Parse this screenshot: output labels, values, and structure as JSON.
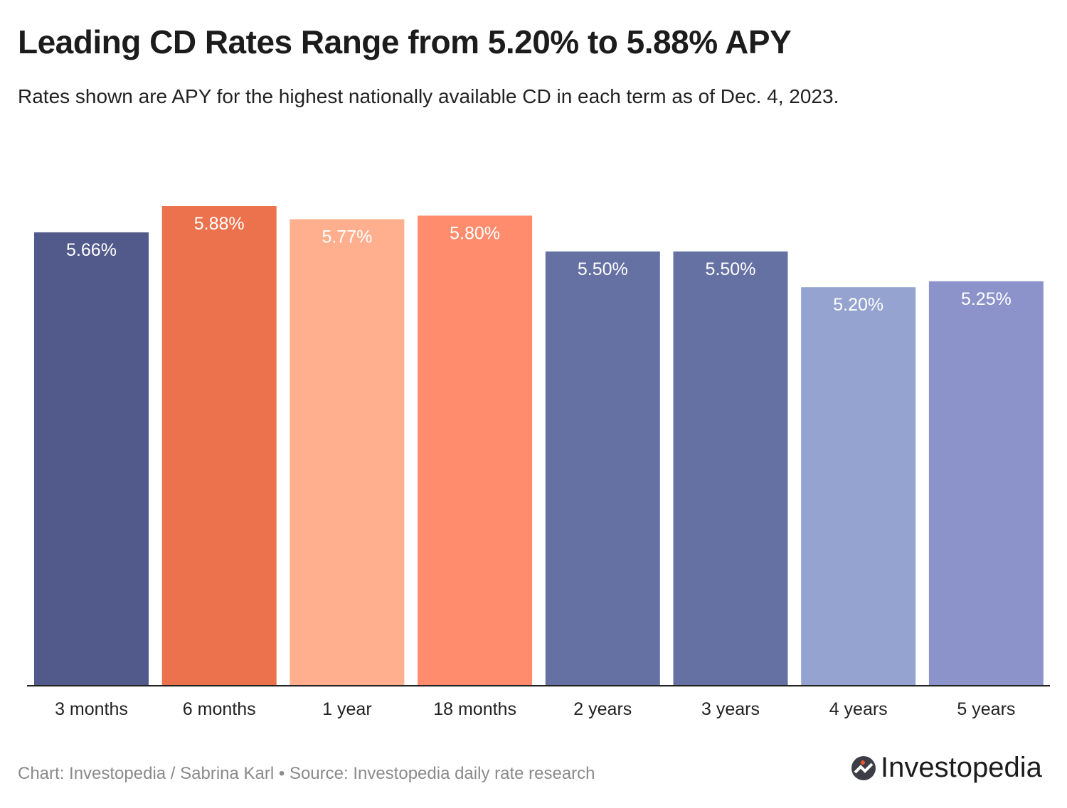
{
  "chart_data": {
    "type": "bar",
    "title": "Leading CD Rates Range from 5.20% to 5.88% APY",
    "subtitle": "Rates shown are APY for the highest nationally available CD in each term as of Dec. 4, 2023.",
    "categories": [
      "3 months",
      "6 months",
      "1 year",
      "18 months",
      "2 years",
      "3 years",
      "4 years",
      "5 years"
    ],
    "values": [
      5.66,
      5.88,
      5.77,
      5.8,
      5.5,
      5.5,
      5.2,
      5.25
    ],
    "data_labels": [
      "5.66%",
      "5.88%",
      "5.77%",
      "5.80%",
      "5.50%",
      "5.50%",
      "5.20%",
      "5.25%"
    ],
    "colors": [
      "#525a8c",
      "#ec724d",
      "#ffaf8d",
      "#ff8c6d",
      "#6570a3",
      "#6570a3",
      "#94a3cf",
      "#8b93ca"
    ],
    "ylim": [
      1.86,
      5.88
    ],
    "grid": false,
    "xlabel": "",
    "ylabel": ""
  },
  "footer": "Chart: Investopedia / Sabrina Karl • Source: Investopedia daily rate research",
  "logo": {
    "text": "Investopedia",
    "accent": "#f2542d"
  }
}
